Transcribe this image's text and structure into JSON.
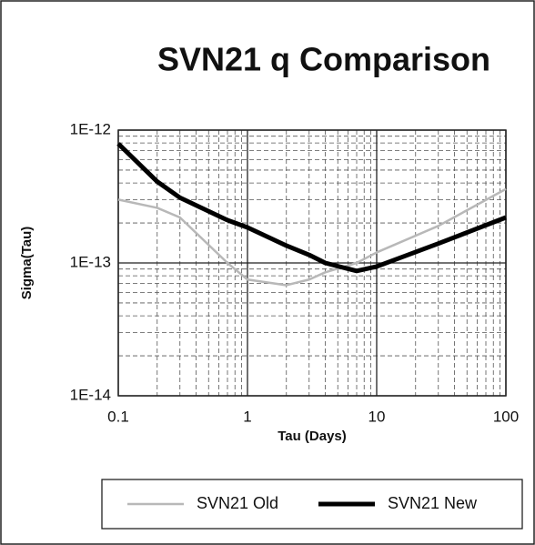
{
  "chart_data": {
    "type": "line",
    "title": "SVN21 q Comparison",
    "xlabel": "Tau (Days)",
    "ylabel": "Sigma(Tau)",
    "xscale": "log",
    "yscale": "log",
    "grid": true,
    "legend": "bottom",
    "xlim": [
      0.1,
      100
    ],
    "ylim": [
      1e-14,
      1e-12
    ],
    "xticks": [
      0.1,
      1,
      10,
      100
    ],
    "yticks": [
      {
        "value": 1e-14,
        "label": "1E-14"
      },
      {
        "value": 1e-13,
        "label": "1E-13"
      },
      {
        "value": 1e-12,
        "label": "1E-12"
      }
    ],
    "xminorticks": [
      0.2,
      0.3,
      0.4,
      0.5,
      0.6,
      0.7,
      0.8,
      0.9,
      2,
      3,
      4,
      5,
      6,
      7,
      8,
      9,
      20,
      30,
      40,
      50,
      60,
      70,
      80,
      90
    ],
    "yminorticks": [
      2e-14,
      3e-14,
      4e-14,
      5e-14,
      6e-14,
      7e-14,
      8e-14,
      9e-14,
      2e-13,
      3e-13,
      4e-13,
      5e-13,
      6e-13,
      7e-13,
      8e-13,
      9e-13
    ],
    "x": [
      0.1,
      0.2,
      0.3,
      0.7,
      1,
      2,
      3,
      4,
      7,
      10,
      30,
      100
    ],
    "series": [
      {
        "name": "SVN21 Old",
        "color": "#b8b8b8",
        "values": [
          3e-13,
          2.6e-13,
          2.2e-13,
          1e-13,
          7.5e-14,
          6.8e-14,
          7.5e-14,
          8.5e-14,
          1e-13,
          1.2e-13,
          1.9e-13,
          3.6e-13
        ]
      },
      {
        "name": "SVN21 New",
        "color": "#000000",
        "values": [
          7.9e-13,
          4.1e-13,
          3.1e-13,
          2.1e-13,
          1.85e-13,
          1.35e-13,
          1.15e-13,
          1e-13,
          8.7e-14,
          9.4e-14,
          1.4e-13,
          2.2e-13
        ]
      }
    ]
  }
}
